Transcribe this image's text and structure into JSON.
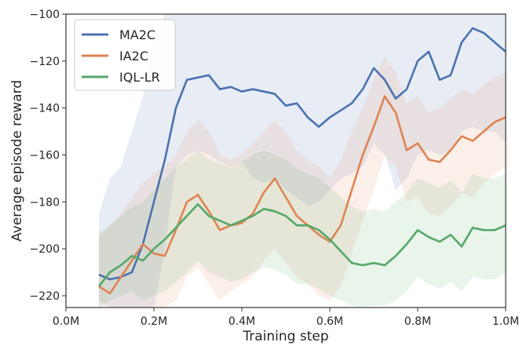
{
  "chart_data": {
    "type": "line",
    "title": "",
    "xlabel": "Training step",
    "ylabel": "Average episode reward",
    "xlim": [
      0,
      1000000
    ],
    "ylim": [
      -225,
      -100
    ],
    "xticks": [
      0,
      200000,
      400000,
      600000,
      800000,
      1000000
    ],
    "xtick_labels": [
      "0.0M",
      "0.2M",
      "0.4M",
      "0.6M",
      "0.8M",
      "1.0M"
    ],
    "yticks": [
      -220,
      -200,
      -180,
      -160,
      -140,
      -120,
      -100
    ],
    "ytick_labels": [
      "−220",
      "−200",
      "−180",
      "−160",
      "−140",
      "−120",
      "−100"
    ],
    "grid": false,
    "legend": "top-left",
    "x": [
      75000,
      100000,
      125000,
      150000,
      175000,
      200000,
      225000,
      250000,
      275000,
      300000,
      325000,
      350000,
      375000,
      400000,
      425000,
      450000,
      475000,
      500000,
      525000,
      550000,
      575000,
      600000,
      625000,
      650000,
      675000,
      700000,
      725000,
      750000,
      775000,
      800000,
      825000,
      850000,
      875000,
      900000,
      925000,
      950000,
      975000,
      1000000
    ],
    "series": [
      {
        "name": "MA2C",
        "color": "#4c72b0",
        "values": [
          -211,
          -213,
          -212,
          -210,
          -198,
          -180,
          -162,
          -140,
          -128,
          -127,
          -126,
          -132,
          -131,
          -133,
          -132,
          -133,
          -134,
          -139,
          -138,
          -144,
          -148,
          -144,
          -141,
          -138,
          -132,
          -123,
          -128,
          -136,
          -132,
          -120,
          -116,
          -128,
          -126,
          -112,
          -106,
          -108,
          -112,
          -116
        ],
        "upper": [
          -185,
          -170,
          -165,
          -150,
          -135,
          -110,
          -100,
          -100,
          -100,
          -100,
          -100,
          -100,
          -100,
          -100,
          -100,
          -100,
          -100,
          -100,
          -100,
          -100,
          -100,
          -100,
          -100,
          -100,
          -100,
          -100,
          -100,
          -100,
          -100,
          -100,
          -100,
          -100,
          -100,
          -100,
          -100,
          -100,
          -100,
          -100
        ],
        "lower": [
          -222,
          -225,
          -225,
          -225,
          -225,
          -225,
          -200,
          -165,
          -160,
          -158,
          -160,
          -163,
          -165,
          -163,
          -170,
          -172,
          -170,
          -175,
          -178,
          -182,
          -180,
          -175,
          -170,
          -168,
          -165,
          -155,
          -160,
          -175,
          -170,
          -160,
          -158,
          -160,
          -158,
          -150,
          -148,
          -150,
          -150,
          -155
        ]
      },
      {
        "name": "IA2C",
        "color": "#dd8452",
        "values": [
          -216,
          -219,
          -212,
          -205,
          -198,
          -202,
          -203,
          -192,
          -180,
          -177,
          -184,
          -192,
          -190,
          -189,
          -185,
          -176,
          -170,
          -178,
          -186,
          -190,
          -194,
          -197,
          -190,
          -175,
          -160,
          -148,
          -135,
          -142,
          -158,
          -155,
          -162,
          -163,
          -158,
          -152,
          -154,
          -150,
          -146,
          -144
        ],
        "upper": [
          -195,
          -190,
          -185,
          -178,
          -172,
          -168,
          -165,
          -160,
          -150,
          -145,
          -150,
          -160,
          -162,
          -160,
          -155,
          -150,
          -145,
          -150,
          -158,
          -162,
          -165,
          -170,
          -162,
          -150,
          -140,
          -128,
          -118,
          -125,
          -138,
          -135,
          -142,
          -140,
          -136,
          -132,
          -134,
          -130,
          -127,
          -125
        ],
        "lower": [
          -225,
          -225,
          -225,
          -225,
          -225,
          -225,
          -225,
          -222,
          -212,
          -208,
          -215,
          -222,
          -218,
          -215,
          -212,
          -205,
          -200,
          -206,
          -212,
          -215,
          -220,
          -222,
          -216,
          -202,
          -188,
          -175,
          -160,
          -165,
          -180,
          -178,
          -185,
          -186,
          -182,
          -176,
          -178,
          -172,
          -168,
          -165
        ]
      },
      {
        "name": "IQL-LR",
        "color": "#55a868",
        "values": [
          -216,
          -210,
          -207,
          -203,
          -205,
          -200,
          -196,
          -191,
          -186,
          -181,
          -186,
          -188,
          -190,
          -188,
          -186,
          -183,
          -184,
          -186,
          -190,
          -190,
          -192,
          -196,
          -201,
          -206,
          -207,
          -206,
          -207,
          -203,
          -198,
          -192,
          -195,
          -197,
          -194,
          -199,
          -191,
          -192,
          -192,
          -190
        ],
        "upper": [
          -193,
          -190,
          -186,
          -182,
          -180,
          -175,
          -170,
          -165,
          -162,
          -158,
          -162,
          -164,
          -165,
          -163,
          -160,
          -158,
          -160,
          -162,
          -166,
          -168,
          -170,
          -174,
          -178,
          -182,
          -184,
          -183,
          -184,
          -180,
          -176,
          -170,
          -172,
          -174,
          -171,
          -176,
          -168,
          -170,
          -170,
          -168
        ],
        "lower": [
          -225,
          -222,
          -220,
          -218,
          -222,
          -220,
          -218,
          -214,
          -210,
          -205,
          -210,
          -212,
          -214,
          -213,
          -210,
          -208,
          -209,
          -211,
          -215,
          -215,
          -217,
          -220,
          -222,
          -224,
          -225,
          -224,
          -224,
          -222,
          -218,
          -212,
          -215,
          -217,
          -214,
          -218,
          -212,
          -213,
          -213,
          -210
        ]
      }
    ]
  }
}
